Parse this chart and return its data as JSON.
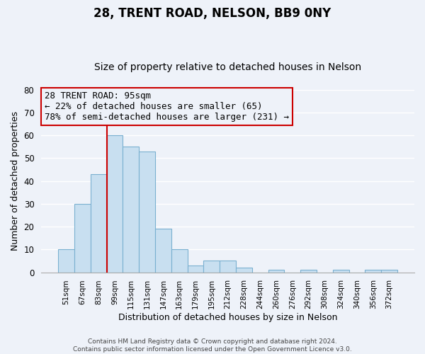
{
  "title1": "28, TRENT ROAD, NELSON, BB9 0NY",
  "title2": "Size of property relative to detached houses in Nelson",
  "xlabel": "Distribution of detached houses by size in Nelson",
  "ylabel": "Number of detached properties",
  "bar_labels": [
    "51sqm",
    "67sqm",
    "83sqm",
    "99sqm",
    "115sqm",
    "131sqm",
    "147sqm",
    "163sqm",
    "179sqm",
    "195sqm",
    "212sqm",
    "228sqm",
    "244sqm",
    "260sqm",
    "276sqm",
    "292sqm",
    "308sqm",
    "324sqm",
    "340sqm",
    "356sqm",
    "372sqm"
  ],
  "bar_values": [
    10,
    30,
    43,
    60,
    55,
    53,
    19,
    10,
    3,
    5,
    5,
    2,
    0,
    1,
    0,
    1,
    0,
    1,
    0,
    1,
    1
  ],
  "bar_color": "#c8dff0",
  "bar_edge_color": "#7ab0d0",
  "ylim": [
    0,
    80
  ],
  "yticks": [
    0,
    10,
    20,
    30,
    40,
    50,
    60,
    70,
    80
  ],
  "property_line_color": "#cc0000",
  "annotation_box_text": "28 TRENT ROAD: 95sqm\n← 22% of detached houses are smaller (65)\n78% of semi-detached houses are larger (231) →",
  "annotation_box_edge_color": "#cc0000",
  "footer_line1": "Contains HM Land Registry data © Crown copyright and database right 2024.",
  "footer_line2": "Contains public sector information licensed under the Open Government Licence v3.0.",
  "background_color": "#eef2f9",
  "grid_color": "#ffffff",
  "title1_fontsize": 12,
  "title2_fontsize": 10,
  "annotation_fontsize": 9,
  "xlabel_fontsize": 9,
  "ylabel_fontsize": 9,
  "footer_fontsize": 6.5
}
